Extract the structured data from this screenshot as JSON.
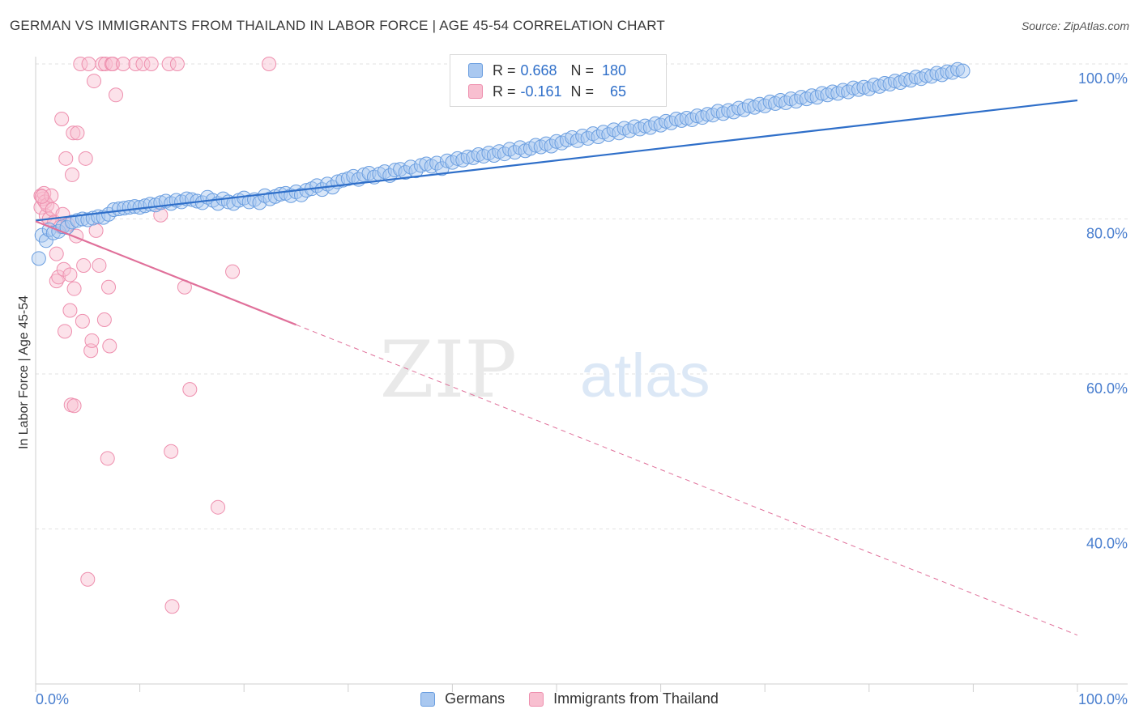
{
  "title": "GERMAN VS IMMIGRANTS FROM THAILAND IN LABOR FORCE | AGE 45-54 CORRELATION CHART",
  "source": "Source: ZipAtlas.com",
  "watermark": {
    "zip": "ZIP",
    "atlas": "atlas"
  },
  "legend": {
    "r_label": "R =",
    "n_label": "N =",
    "germans": {
      "r": "0.668",
      "n": "180"
    },
    "thailand": {
      "r": "-0.161",
      "n": "65"
    }
  },
  "colors": {
    "blue_fill": "#a9c8f0",
    "blue_stroke": "#6a9ee0",
    "blue_line": "#2f6fc9",
    "pink_fill": "#f8bfd0",
    "pink_stroke": "#ee8fae",
    "pink_line": "#e0709a",
    "axis_text": "#4a7fcf",
    "grid": "#e2e2e2"
  },
  "chart_data": {
    "type": "scatter",
    "title": "GERMAN VS IMMIGRANTS FROM THAILAND IN LABOR FORCE | AGE 45-54 CORRELATION CHART",
    "xlabel": "",
    "ylabel": "In Labor Force | Age 45-54",
    "xlim": [
      0,
      100
    ],
    "ylim": [
      20,
      103
    ],
    "x_tick_labels": [
      "0.0%",
      "100.0%"
    ],
    "y_ticks": [
      40,
      60,
      80,
      100
    ],
    "y_tick_labels": [
      "40.0%",
      "60.0%",
      "80.0%",
      "100.0%"
    ],
    "grid": true,
    "legend_position": "top-center",
    "series": [
      {
        "name": "Germans",
        "r": 0.668,
        "n": 180,
        "trend": {
          "x": [
            0,
            100
          ],
          "y": [
            79.8,
            95.3
          ],
          "dashed_from": null
        },
        "points": [
          [
            0.3,
            74.9
          ],
          [
            0.6,
            77.9
          ],
          [
            1.0,
            77.2
          ],
          [
            1.3,
            78.6
          ],
          [
            1.7,
            78.2
          ],
          [
            2.2,
            78.4
          ],
          [
            2.6,
            79.0
          ],
          [
            3.0,
            78.9
          ],
          [
            3.5,
            79.6
          ],
          [
            4.0,
            79.8
          ],
          [
            4.5,
            80.0
          ],
          [
            5.0,
            79.9
          ],
          [
            5.5,
            80.1
          ],
          [
            6.0,
            80.3
          ],
          [
            6.5,
            80.2
          ],
          [
            7.0,
            80.6
          ],
          [
            7.5,
            81.2
          ],
          [
            8.0,
            81.3
          ],
          [
            8.5,
            81.4
          ],
          [
            9.0,
            81.5
          ],
          [
            9.5,
            81.6
          ],
          [
            10.0,
            81.5
          ],
          [
            10.5,
            81.7
          ],
          [
            11.0,
            81.9
          ],
          [
            11.5,
            81.8
          ],
          [
            12.0,
            82.1
          ],
          [
            12.5,
            82.3
          ],
          [
            13.0,
            82.0
          ],
          [
            13.5,
            82.4
          ],
          [
            14.0,
            82.2
          ],
          [
            14.5,
            82.6
          ],
          [
            15.0,
            82.5
          ],
          [
            15.5,
            82.3
          ],
          [
            16.0,
            82.1
          ],
          [
            16.5,
            82.8
          ],
          [
            17.0,
            82.4
          ],
          [
            17.5,
            82.0
          ],
          [
            18.0,
            82.6
          ],
          [
            18.5,
            82.2
          ],
          [
            19.0,
            82.0
          ],
          [
            19.5,
            82.4
          ],
          [
            20.0,
            82.7
          ],
          [
            20.5,
            82.2
          ],
          [
            21.0,
            82.5
          ],
          [
            21.5,
            82.1
          ],
          [
            22.0,
            83.0
          ],
          [
            22.5,
            82.6
          ],
          [
            23.0,
            82.9
          ],
          [
            23.5,
            83.2
          ],
          [
            24.0,
            83.3
          ],
          [
            24.5,
            83.0
          ],
          [
            25.0,
            83.5
          ],
          [
            25.5,
            83.1
          ],
          [
            26.0,
            83.7
          ],
          [
            26.5,
            83.9
          ],
          [
            27.0,
            84.3
          ],
          [
            27.5,
            83.8
          ],
          [
            28.0,
            84.5
          ],
          [
            28.5,
            84.1
          ],
          [
            29.0,
            84.8
          ],
          [
            29.5,
            85.0
          ],
          [
            30.0,
            85.2
          ],
          [
            30.5,
            85.5
          ],
          [
            31.0,
            85.1
          ],
          [
            31.5,
            85.7
          ],
          [
            32.0,
            85.9
          ],
          [
            32.5,
            85.4
          ],
          [
            33.0,
            85.8
          ],
          [
            33.5,
            86.1
          ],
          [
            34.0,
            85.6
          ],
          [
            34.5,
            86.3
          ],
          [
            35.0,
            86.4
          ],
          [
            35.5,
            86.0
          ],
          [
            36.0,
            86.7
          ],
          [
            36.5,
            86.2
          ],
          [
            37.0,
            86.9
          ],
          [
            37.5,
            87.1
          ],
          [
            38.0,
            86.8
          ],
          [
            38.5,
            87.2
          ],
          [
            39.0,
            86.5
          ],
          [
            39.5,
            87.5
          ],
          [
            40.0,
            87.3
          ],
          [
            40.5,
            87.8
          ],
          [
            41.0,
            87.6
          ],
          [
            41.5,
            88.0
          ],
          [
            42.0,
            87.9
          ],
          [
            42.5,
            88.3
          ],
          [
            43.0,
            88.1
          ],
          [
            43.5,
            88.5
          ],
          [
            44.0,
            88.2
          ],
          [
            44.5,
            88.7
          ],
          [
            45.0,
            88.4
          ],
          [
            45.5,
            89.0
          ],
          [
            46.0,
            88.6
          ],
          [
            46.5,
            89.2
          ],
          [
            47.0,
            88.8
          ],
          [
            47.5,
            89.1
          ],
          [
            48.0,
            89.5
          ],
          [
            48.5,
            89.3
          ],
          [
            49.0,
            89.7
          ],
          [
            49.5,
            89.4
          ],
          [
            50.0,
            90.0
          ],
          [
            50.5,
            89.8
          ],
          [
            51.0,
            90.2
          ],
          [
            51.5,
            90.5
          ],
          [
            52.0,
            90.1
          ],
          [
            52.5,
            90.7
          ],
          [
            53.0,
            90.4
          ],
          [
            53.5,
            91.0
          ],
          [
            54.0,
            90.6
          ],
          [
            54.5,
            91.2
          ],
          [
            55.0,
            90.9
          ],
          [
            55.5,
            91.5
          ],
          [
            56.0,
            91.1
          ],
          [
            56.5,
            91.7
          ],
          [
            57.0,
            91.4
          ],
          [
            57.5,
            91.9
          ],
          [
            58.0,
            91.6
          ],
          [
            58.5,
            92.0
          ],
          [
            59.0,
            91.8
          ],
          [
            59.5,
            92.3
          ],
          [
            60.0,
            92.1
          ],
          [
            60.5,
            92.6
          ],
          [
            61.0,
            92.4
          ],
          [
            61.5,
            92.9
          ],
          [
            62.0,
            92.7
          ],
          [
            62.5,
            93.0
          ],
          [
            63.0,
            92.8
          ],
          [
            63.5,
            93.3
          ],
          [
            64.0,
            93.1
          ],
          [
            64.5,
            93.5
          ],
          [
            65.0,
            93.4
          ],
          [
            65.5,
            93.9
          ],
          [
            66.0,
            93.6
          ],
          [
            66.5,
            94.0
          ],
          [
            67.0,
            93.8
          ],
          [
            67.5,
            94.3
          ],
          [
            68.0,
            94.1
          ],
          [
            68.5,
            94.6
          ],
          [
            69.0,
            94.4
          ],
          [
            69.5,
            94.8
          ],
          [
            70.0,
            94.6
          ],
          [
            70.5,
            95.1
          ],
          [
            71.0,
            94.9
          ],
          [
            71.5,
            95.3
          ],
          [
            72.0,
            95.0
          ],
          [
            72.5,
            95.5
          ],
          [
            73.0,
            95.2
          ],
          [
            73.5,
            95.7
          ],
          [
            74.0,
            95.5
          ],
          [
            74.5,
            95.9
          ],
          [
            75.0,
            95.7
          ],
          [
            75.5,
            96.2
          ],
          [
            76.0,
            96.0
          ],
          [
            76.5,
            96.4
          ],
          [
            77.0,
            96.2
          ],
          [
            77.5,
            96.6
          ],
          [
            78.0,
            96.4
          ],
          [
            78.5,
            96.9
          ],
          [
            79.0,
            96.7
          ],
          [
            79.5,
            97.0
          ],
          [
            80.0,
            96.8
          ],
          [
            80.5,
            97.3
          ],
          [
            81.0,
            97.1
          ],
          [
            81.5,
            97.5
          ],
          [
            82.0,
            97.4
          ],
          [
            82.5,
            97.8
          ],
          [
            83.0,
            97.6
          ],
          [
            83.5,
            98.0
          ],
          [
            84.0,
            97.9
          ],
          [
            84.5,
            98.3
          ],
          [
            85.0,
            98.1
          ],
          [
            85.5,
            98.5
          ],
          [
            86.0,
            98.4
          ],
          [
            86.5,
            98.8
          ],
          [
            87.0,
            98.6
          ],
          [
            87.5,
            99.0
          ],
          [
            88.0,
            98.9
          ],
          [
            88.5,
            99.3
          ],
          [
            89.0,
            99.1
          ]
        ]
      },
      {
        "name": "Immigrants from Thailand",
        "r": -0.161,
        "n": 65,
        "trend": {
          "x": [
            0,
            100
          ],
          "y": [
            79.7,
            26.3
          ],
          "solid_until_x": 25
        },
        "points": [
          [
            0.5,
            83.0
          ],
          [
            0.5,
            81.5
          ],
          [
            0.7,
            82.6
          ],
          [
            0.8,
            83.3
          ],
          [
            0.9,
            82.2
          ],
          [
            1.0,
            80.4
          ],
          [
            1.1,
            81.8
          ],
          [
            1.3,
            80.0
          ],
          [
            1.5,
            83.0
          ],
          [
            1.6,
            81.2
          ],
          [
            1.8,
            79.6
          ],
          [
            2.0,
            75.5
          ],
          [
            2.0,
            72.0
          ],
          [
            2.2,
            72.5
          ],
          [
            2.4,
            79.0
          ],
          [
            2.5,
            92.9
          ],
          [
            2.6,
            80.6
          ],
          [
            2.7,
            73.5
          ],
          [
            2.8,
            65.5
          ],
          [
            2.9,
            87.8
          ],
          [
            3.1,
            79.3
          ],
          [
            3.3,
            68.2
          ],
          [
            3.3,
            72.8
          ],
          [
            3.4,
            56.0
          ],
          [
            3.5,
            85.7
          ],
          [
            3.6,
            91.1
          ],
          [
            3.7,
            71.0
          ],
          [
            3.7,
            55.9
          ],
          [
            3.9,
            77.8
          ],
          [
            4.0,
            91.1
          ],
          [
            4.3,
            100.0
          ],
          [
            4.5,
            66.8
          ],
          [
            4.6,
            74.0
          ],
          [
            4.8,
            87.8
          ],
          [
            5.1,
            100.0
          ],
          [
            5.0,
            33.5
          ],
          [
            5.3,
            63.0
          ],
          [
            5.4,
            64.3
          ],
          [
            5.6,
            97.8
          ],
          [
            5.8,
            78.5
          ],
          [
            6.1,
            74.0
          ],
          [
            6.4,
            100.0
          ],
          [
            6.6,
            67.0
          ],
          [
            6.7,
            100.0
          ],
          [
            6.9,
            49.1
          ],
          [
            7.0,
            71.2
          ],
          [
            7.1,
            63.6
          ],
          [
            7.3,
            100.0
          ],
          [
            7.4,
            100.0
          ],
          [
            7.7,
            96.0
          ],
          [
            8.4,
            100.0
          ],
          [
            9.6,
            100.0
          ],
          [
            10.3,
            100.0
          ],
          [
            11.1,
            100.0
          ],
          [
            12.0,
            80.5
          ],
          [
            12.8,
            100.0
          ],
          [
            13.0,
            50.0
          ],
          [
            13.1,
            30.0
          ],
          [
            13.6,
            100.0
          ],
          [
            14.3,
            71.2
          ],
          [
            14.8,
            58.0
          ],
          [
            17.5,
            42.8
          ],
          [
            18.9,
            73.2
          ],
          [
            22.4,
            100.0
          ],
          [
            0.6,
            82.9
          ]
        ]
      }
    ]
  }
}
